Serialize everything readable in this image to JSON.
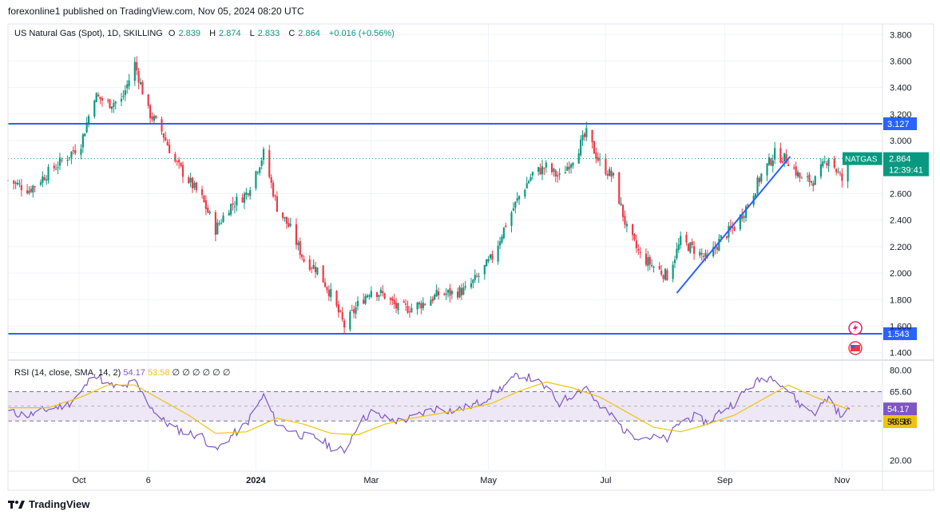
{
  "header": {
    "published_line": "forexonline1 published on TradingView.com, Nov 05, 2024 08:20 UTC"
  },
  "legend": {
    "symbol": "US Natural Gas (Spot), 1D, SKILLING",
    "o_label": "O",
    "o_value": "2.839",
    "h_label": "H",
    "h_value": "2.874",
    "l_label": "L",
    "l_value": "2.833",
    "c_label": "C",
    "c_value": "2.864",
    "change": "+0.016 (+0.56%)"
  },
  "price_axis": {
    "ticks": [
      "3.800",
      "3.600",
      "3.400",
      "3.200",
      "3.000",
      "2.600",
      "2.400",
      "2.200",
      "2.000",
      "1.800",
      "1.600",
      "1.400"
    ],
    "ticks_num": [
      3.8,
      3.6,
      3.4,
      3.2,
      3.0,
      2.6,
      2.4,
      2.2,
      2.0,
      1.8,
      1.6,
      1.4
    ],
    "resistance_label": "3.127",
    "support_label": "1.543",
    "current_symbol": "NATGAS",
    "current_price": "2.864",
    "countdown": "12:39:41"
  },
  "time_axis": {
    "labels": [
      "Oct",
      "6",
      "2024",
      "Mar",
      "May",
      "Jul",
      "Sep",
      "Nov"
    ]
  },
  "rsi": {
    "legend": "RSI (14, close, SMA, 14, 2)",
    "rsi_value": "54.17",
    "sma_value": "53.58",
    "na_marks": [
      "∅",
      "∅",
      "∅",
      "∅",
      "∅",
      "∅"
    ],
    "ticks": [
      "80.00",
      "65.60",
      "46.16",
      "20.00"
    ],
    "ticks_num": [
      80,
      65.6,
      46.16,
      20
    ]
  },
  "footer": {
    "brand": "TradingView"
  },
  "colors": {
    "up": "#089981",
    "down": "#f23645",
    "line": "#2962ff",
    "rsi": "#7e57c2",
    "rsi_sma": "#f0c30b",
    "band": "#ede7f6"
  },
  "chart_data": [
    {
      "type": "candlestick",
      "title": "US Natural Gas (Spot), 1D, SKILLING",
      "series": [
        {
          "name": "Close (approx.)",
          "points": [
            [
              "2023-08-25",
              2.7
            ],
            [
              "2023-09-05",
              2.63
            ],
            [
              "2023-09-15",
              2.76
            ],
            [
              "2023-09-25",
              2.88
            ],
            [
              "2023-10-02",
              2.98
            ],
            [
              "2023-10-09",
              3.34
            ],
            [
              "2023-10-16",
              3.28
            ],
            [
              "2023-10-23",
              3.3
            ],
            [
              "2023-10-30",
              3.58
            ],
            [
              "2023-11-06",
              3.22
            ],
            [
              "2023-11-13",
              3.07
            ],
            [
              "2023-11-20",
              2.84
            ],
            [
              "2023-11-27",
              2.7
            ],
            [
              "2023-12-04",
              2.56
            ],
            [
              "2023-12-11",
              2.33
            ],
            [
              "2023-12-18",
              2.5
            ],
            [
              "2023-12-27",
              2.6
            ],
            [
              "2024-01-05",
              2.9
            ],
            [
              "2024-01-12",
              2.5
            ],
            [
              "2024-01-19",
              2.33
            ],
            [
              "2024-01-26",
              2.1
            ],
            [
              "2024-02-02",
              2.03
            ],
            [
              "2024-02-09",
              1.84
            ],
            [
              "2024-02-16",
              1.6
            ],
            [
              "2024-02-23",
              1.76
            ],
            [
              "2024-03-01",
              1.88
            ],
            [
              "2024-03-08",
              1.83
            ],
            [
              "2024-03-15",
              1.73
            ],
            [
              "2024-03-22",
              1.74
            ],
            [
              "2024-03-29",
              1.78
            ],
            [
              "2024-04-05",
              1.84
            ],
            [
              "2024-04-12",
              1.85
            ],
            [
              "2024-04-19",
              1.87
            ],
            [
              "2024-04-26",
              1.98
            ],
            [
              "2024-05-03",
              2.12
            ],
            [
              "2024-05-10",
              2.37
            ],
            [
              "2024-05-17",
              2.58
            ],
            [
              "2024-05-24",
              2.75
            ],
            [
              "2024-05-31",
              2.8
            ],
            [
              "2024-06-07",
              2.72
            ],
            [
              "2024-06-14",
              2.87
            ],
            [
              "2024-06-21",
              3.05
            ],
            [
              "2024-06-28",
              2.83
            ],
            [
              "2024-07-05",
              2.72
            ],
            [
              "2024-07-12",
              2.33
            ],
            [
              "2024-07-19",
              2.13
            ],
            [
              "2024-07-26",
              2.05
            ],
            [
              "2024-08-02",
              1.98
            ],
            [
              "2024-08-09",
              2.24
            ],
            [
              "2024-08-16",
              2.18
            ],
            [
              "2024-08-23",
              2.1
            ],
            [
              "2024-08-30",
              2.26
            ],
            [
              "2024-09-06",
              2.35
            ],
            [
              "2024-09-13",
              2.52
            ],
            [
              "2024-09-20",
              2.74
            ],
            [
              "2024-09-27",
              2.9
            ],
            [
              "2024-10-04",
              2.85
            ],
            [
              "2024-10-11",
              2.7
            ],
            [
              "2024-10-18",
              2.7
            ],
            [
              "2024-10-25",
              2.88
            ],
            [
              "2024-11-01",
              2.7
            ],
            [
              "2024-11-05",
              2.864
            ]
          ]
        }
      ],
      "horizontal_lines": [
        {
          "label": "3.127",
          "y": 3.127
        },
        {
          "label": "1.543",
          "y": 1.543
        }
      ],
      "trend_line": {
        "from": [
          "2024-08-07",
          1.85
        ],
        "to": [
          "2024-10-05",
          2.88
        ]
      },
      "xlabel": "",
      "ylabel": "",
      "ylim": [
        1.35,
        3.88
      ],
      "grid": true,
      "legend_position": "top-left"
    },
    {
      "type": "line",
      "title": "RSI (14, close, SMA, 14, 2)",
      "series": [
        {
          "name": "RSI",
          "points": [
            [
              "2023-08-25",
              52
            ],
            [
              "2023-09-05",
              50
            ],
            [
              "2023-09-15",
              54
            ],
            [
              "2023-09-25",
              57
            ],
            [
              "2023-10-02",
              65
            ],
            [
              "2023-10-09",
              78
            ],
            [
              "2023-10-16",
              70
            ],
            [
              "2023-10-23",
              68
            ],
            [
              "2023-10-30",
              72
            ],
            [
              "2023-11-06",
              58
            ],
            [
              "2023-11-13",
              47
            ],
            [
              "2023-11-20",
              41
            ],
            [
              "2023-11-27",
              38
            ],
            [
              "2023-12-04",
              36
            ],
            [
              "2023-12-11",
              26
            ],
            [
              "2023-12-18",
              35
            ],
            [
              "2023-12-27",
              44
            ],
            [
              "2024-01-05",
              63
            ],
            [
              "2024-01-12",
              44
            ],
            [
              "2024-01-19",
              40
            ],
            [
              "2024-01-26",
              36
            ],
            [
              "2024-02-02",
              35
            ],
            [
              "2024-02-09",
              29
            ],
            [
              "2024-02-16",
              26
            ],
            [
              "2024-02-23",
              44
            ],
            [
              "2024-03-01",
              52
            ],
            [
              "2024-03-08",
              48
            ],
            [
              "2024-03-15",
              46
            ],
            [
              "2024-03-22",
              48
            ],
            [
              "2024-03-29",
              52
            ],
            [
              "2024-04-05",
              55
            ],
            [
              "2024-04-12",
              53
            ],
            [
              "2024-04-19",
              55
            ],
            [
              "2024-04-26",
              58
            ],
            [
              "2024-05-03",
              64
            ],
            [
              "2024-05-10",
              70
            ],
            [
              "2024-05-17",
              77
            ],
            [
              "2024-05-24",
              74
            ],
            [
              "2024-05-31",
              68
            ],
            [
              "2024-06-07",
              58
            ],
            [
              "2024-06-14",
              64
            ],
            [
              "2024-06-21",
              69
            ],
            [
              "2024-06-28",
              55
            ],
            [
              "2024-07-05",
              49
            ],
            [
              "2024-07-12",
              38
            ],
            [
              "2024-07-19",
              36
            ],
            [
              "2024-07-26",
              35
            ],
            [
              "2024-08-02",
              34
            ],
            [
              "2024-08-09",
              46
            ],
            [
              "2024-08-16",
              49
            ],
            [
              "2024-08-23",
              45
            ],
            [
              "2024-08-30",
              53
            ],
            [
              "2024-09-06",
              58
            ],
            [
              "2024-09-13",
              68
            ],
            [
              "2024-09-20",
              74
            ],
            [
              "2024-09-27",
              76
            ],
            [
              "2024-10-04",
              66
            ],
            [
              "2024-10-11",
              56
            ],
            [
              "2024-10-18",
              52
            ],
            [
              "2024-10-25",
              62
            ],
            [
              "2024-11-01",
              48
            ],
            [
              "2024-11-05",
              54.17
            ]
          ]
        },
        {
          "name": "SMA",
          "points": [
            [
              "2023-08-25",
              55
            ],
            [
              "2023-09-15",
              55
            ],
            [
              "2023-10-02",
              62
            ],
            [
              "2023-10-16",
              70
            ],
            [
              "2023-10-30",
              70
            ],
            [
              "2023-11-13",
              60
            ],
            [
              "2023-11-27",
              50
            ],
            [
              "2023-12-11",
              38
            ],
            [
              "2023-12-27",
              39
            ],
            [
              "2024-01-12",
              48
            ],
            [
              "2024-01-26",
              44
            ],
            [
              "2024-02-09",
              38
            ],
            [
              "2024-02-23",
              37
            ],
            [
              "2024-03-08",
              44
            ],
            [
              "2024-03-22",
              48
            ],
            [
              "2024-04-05",
              51
            ],
            [
              "2024-04-19",
              54
            ],
            [
              "2024-05-03",
              58
            ],
            [
              "2024-05-17",
              66
            ],
            [
              "2024-05-31",
              72
            ],
            [
              "2024-06-14",
              68
            ],
            [
              "2024-06-28",
              62
            ],
            [
              "2024-07-12",
              52
            ],
            [
              "2024-07-26",
              42
            ],
            [
              "2024-08-09",
              39
            ],
            [
              "2024-08-23",
              44
            ],
            [
              "2024-09-06",
              50
            ],
            [
              "2024-09-20",
              60
            ],
            [
              "2024-10-04",
              70
            ],
            [
              "2024-10-18",
              62
            ],
            [
              "2024-11-05",
              53.58
            ]
          ]
        }
      ],
      "ylim": [
        14,
        86
      ],
      "bands": [
        65.6,
        46.16
      ],
      "grid": true
    }
  ]
}
